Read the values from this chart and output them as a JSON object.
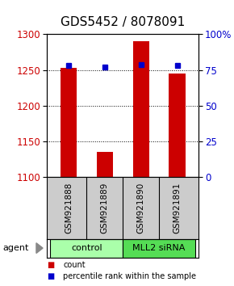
{
  "title": "GDS5452 / 8078091",
  "samples": [
    "GSM921888",
    "GSM921889",
    "GSM921890",
    "GSM921891"
  ],
  "bar_values": [
    1253,
    1136,
    1290,
    1245
  ],
  "percentile_values": [
    78,
    77,
    79,
    78
  ],
  "ylim_left": [
    1100,
    1300
  ],
  "ylim_right": [
    0,
    100
  ],
  "yticks_left": [
    1100,
    1150,
    1200,
    1250,
    1300
  ],
  "yticks_right": [
    0,
    25,
    50,
    75,
    100
  ],
  "ytick_labels_right": [
    "0",
    "25",
    "50",
    "75",
    "100%"
  ],
  "bar_color": "#cc0000",
  "percentile_color": "#0000cc",
  "bar_bottom": 1100,
  "groups": [
    {
      "label": "control",
      "indices": [
        0,
        1
      ],
      "color": "#aaffaa"
    },
    {
      "label": "MLL2 siRNA",
      "indices": [
        2,
        3
      ],
      "color": "#55dd55"
    }
  ],
  "agent_label": "agent",
  "legend_count_label": "count",
  "legend_percentile_label": "percentile rank within the sample",
  "sample_box_color": "#cccccc",
  "title_fontsize": 11,
  "tick_fontsize": 8.5,
  "bar_width": 0.45
}
